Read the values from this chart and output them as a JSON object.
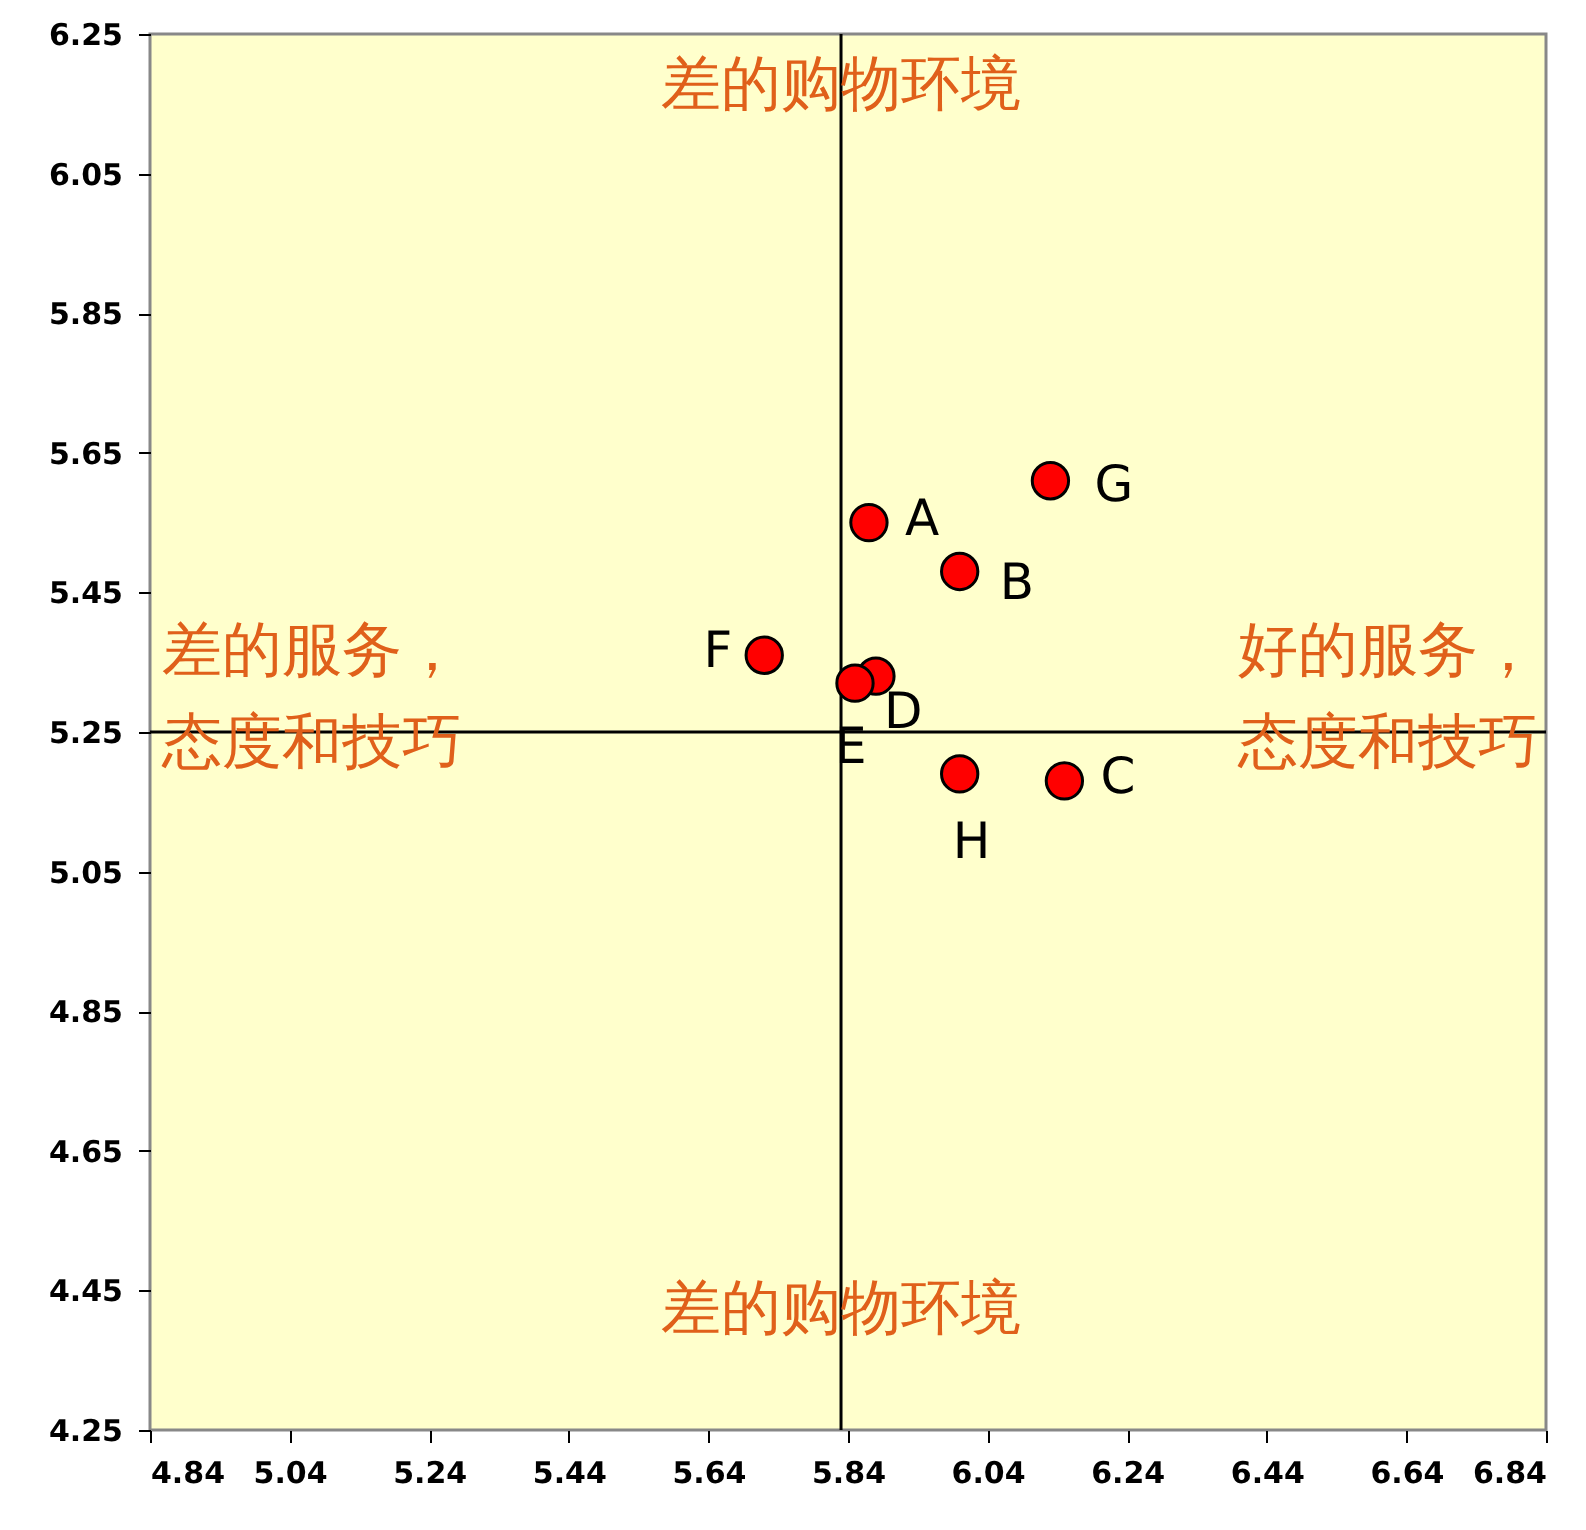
{
  "chart_data": {
    "type": "scatter",
    "marker": "circle",
    "grid": false,
    "x": [
      5.87,
      6.0,
      6.15,
      5.88,
      5.85,
      5.72,
      6.13,
      6.0
    ],
    "series": [
      {
        "color": "#ff0000",
        "values": [
          5.55,
          5.48,
          5.18,
          5.33,
          5.32,
          5.36,
          5.61,
          5.19
        ]
      }
    ],
    "xlim": [
      4.84,
      6.84
    ],
    "xticks": [
      4.84,
      5.04,
      5.24,
      5.44,
      5.64,
      5.84,
      6.04,
      6.24,
      6.44,
      6.64,
      6.84
    ],
    "ylim": [
      4.25,
      6.25
    ],
    "yticks": [
      4.25,
      4.45,
      4.65,
      4.85,
      5.05,
      5.25,
      5.45,
      5.65,
      5.85,
      6.05,
      6.25
    ],
    "ref_lines": [
      {
        "axis": "x",
        "value": 5.83,
        "color": "#000000"
      },
      {
        "axis": "y",
        "value": 5.25,
        "color": "#000000"
      }
    ],
    "annotations": [
      {
        "text": "A",
        "x": 5.87,
        "y": 5.55
      },
      {
        "text": "B",
        "x": 6.0,
        "y": 5.48
      },
      {
        "text": "C",
        "x": 6.15,
        "y": 5.18
      },
      {
        "text": "D",
        "x": 5.88,
        "y": 5.33
      },
      {
        "text": "E",
        "x": 5.85,
        "y": 5.32
      },
      {
        "text": "F",
        "x": 5.72,
        "y": 5.36
      },
      {
        "text": "G",
        "x": 6.13,
        "y": 5.61
      },
      {
        "text": "H",
        "x": 6.0,
        "y": 5.19
      },
      "差的购物环境",
      "差的服务，",
      "态度和技巧",
      "好的服务，",
      "态度和技巧",
      "差的购物环境"
    ]
  }
}
